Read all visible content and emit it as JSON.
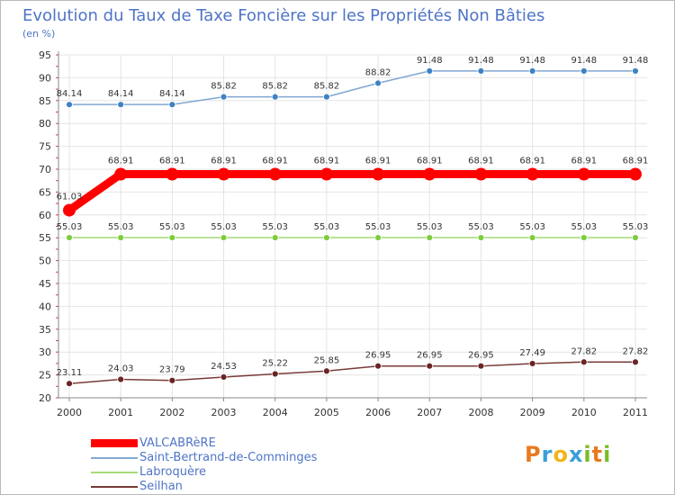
{
  "title": "Evolution du Taux de Taxe Foncière sur les Propriétés Non Bâties",
  "subtitle": "(en %)",
  "logo": {
    "letters": [
      "P",
      "r",
      "o",
      "x",
      "i",
      "t",
      "i"
    ],
    "colors": [
      "#e87a1e",
      "#3a9fd8",
      "#f2b418",
      "#3a9fd8",
      "#7dbb2a",
      "#e87a1e",
      "#7dbb2a"
    ]
  },
  "chart_data": {
    "type": "line",
    "title": "Evolution du Taux de Taxe Foncière sur les Propriétés Non Bâties",
    "ylabel": "(en %)",
    "xlabel": "",
    "x": [
      "2000",
      "2001",
      "2002",
      "2003",
      "2004",
      "2005",
      "2006",
      "2007",
      "2008",
      "2009",
      "2010",
      "2011"
    ],
    "ylim": [
      20,
      95
    ],
    "yticks": [
      20,
      25,
      30,
      35,
      40,
      45,
      50,
      55,
      60,
      65,
      70,
      75,
      80,
      85,
      90,
      95
    ],
    "grid": true,
    "legend_position": "bottom-left",
    "series": [
      {
        "name": "VALCABRèRE",
        "color": "#ff0000",
        "marker": "#ff0000",
        "values": [
          61.03,
          68.91,
          68.91,
          68.91,
          68.91,
          68.91,
          68.91,
          68.91,
          68.91,
          68.91,
          68.91,
          68.91
        ],
        "labels": [
          "61.03",
          "68.91",
          "68.91",
          "68.91",
          "68.91",
          "68.91",
          "68.91",
          "68.91",
          "68.91",
          "68.91",
          "68.91",
          "68.91"
        ]
      },
      {
        "name": "Saint-Bertrand-de-Comminges",
        "color": "#80a8d0",
        "marker": "#3d82c4",
        "values": [
          84.14,
          84.14,
          84.14,
          85.82,
          85.82,
          85.82,
          88.82,
          91.48,
          91.48,
          91.48,
          91.48,
          91.48
        ],
        "labels": [
          "84.14",
          "84.14",
          "84.14",
          "85.82",
          "85.82",
          "85.82",
          "88.82",
          "91.48",
          "91.48",
          "91.48",
          "91.48",
          "91.48"
        ]
      },
      {
        "name": "Labroquère",
        "color": "#a6dc7a",
        "marker": "#7dcc3c",
        "values": [
          55.03,
          55.03,
          55.03,
          55.03,
          55.03,
          55.03,
          55.03,
          55.03,
          55.03,
          55.03,
          55.03,
          55.03
        ],
        "labels": [
          "55.03",
          "55.03",
          "55.03",
          "55.03",
          "55.03",
          "55.03",
          "55.03",
          "55.03",
          "55.03",
          "55.03",
          "55.03",
          "55.03"
        ]
      },
      {
        "name": "Seilhan",
        "color": "#7a3a3a",
        "marker": "#6a2424",
        "values": [
          23.11,
          24.03,
          23.79,
          24.53,
          25.22,
          25.85,
          26.95,
          26.95,
          26.95,
          27.49,
          27.82,
          27.82
        ],
        "labels": [
          "23.11",
          "24.03",
          "23.79",
          "24.53",
          "25.22",
          "25.85",
          "26.95",
          "26.95",
          "26.95",
          "27.49",
          "27.82",
          "27.82"
        ]
      }
    ]
  }
}
